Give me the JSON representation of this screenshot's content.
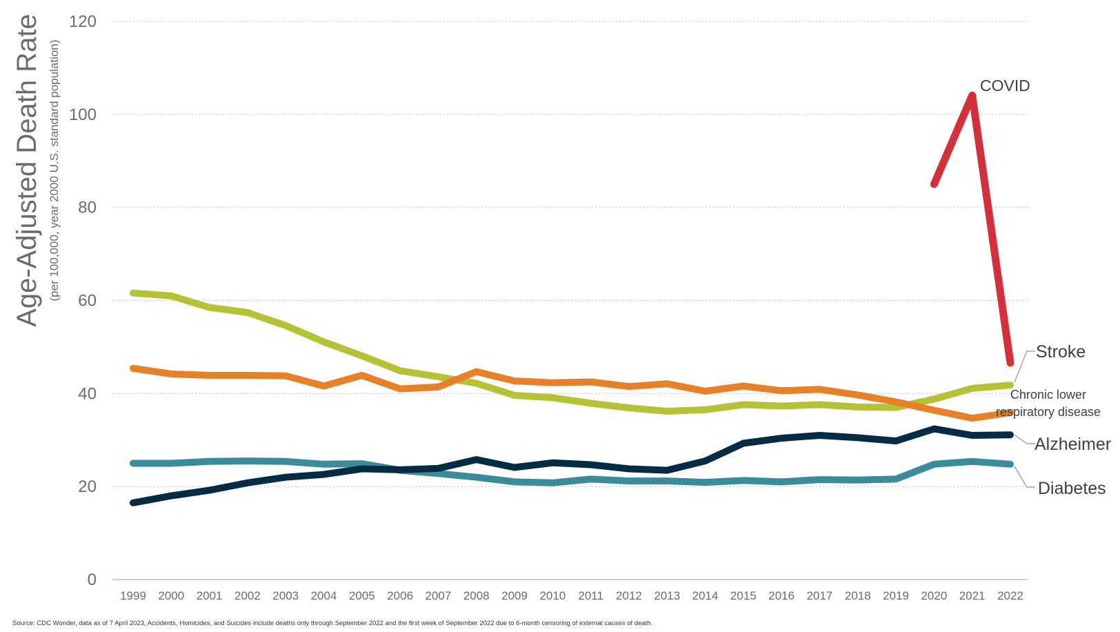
{
  "chart_data": {
    "type": "line",
    "title": "",
    "ylabel": "Age-Adjusted Death Rate",
    "ylabel_sub": "(per 100,000, year 2000 U.S. standard population)",
    "xlabel": "",
    "ylim": [
      0,
      120
    ],
    "yticks": [
      0,
      20,
      40,
      60,
      80,
      100,
      120
    ],
    "grid": "horizontal dotted",
    "x": [
      1999,
      2000,
      2001,
      2002,
      2003,
      2004,
      2005,
      2006,
      2007,
      2008,
      2009,
      2010,
      2011,
      2012,
      2013,
      2014,
      2015,
      2016,
      2017,
      2018,
      2019,
      2020,
      2021,
      2022
    ],
    "series": [
      {
        "name": "Stroke",
        "color": "#b5c235",
        "values": [
          61.6,
          61.0,
          58.5,
          57.4,
          54.6,
          51.1,
          48.1,
          44.9,
          43.6,
          42.2,
          39.6,
          39.1,
          37.9,
          36.9,
          36.2,
          36.5,
          37.6,
          37.3,
          37.6,
          37.1,
          37.0,
          38.8,
          41.1,
          41.8
        ]
      },
      {
        "name": "Chronic lower respiratory disease",
        "color": "#e6812a",
        "values": [
          45.4,
          44.2,
          43.9,
          43.9,
          43.8,
          41.6,
          43.9,
          41.0,
          41.4,
          44.7,
          42.7,
          42.3,
          42.5,
          41.5,
          42.1,
          40.5,
          41.6,
          40.6,
          40.9,
          39.7,
          38.2,
          36.4,
          34.7,
          35.9
        ]
      },
      {
        "name": "Alzheimer",
        "color": "#052c44",
        "values": [
          16.5,
          18.0,
          19.2,
          20.8,
          22.0,
          22.6,
          23.8,
          23.6,
          23.9,
          25.8,
          24.1,
          25.1,
          24.7,
          23.8,
          23.5,
          25.5,
          29.3,
          30.4,
          31.0,
          30.5,
          29.8,
          32.4,
          31.0,
          31.1
        ]
      },
      {
        "name": "Diabetes",
        "color": "#3a8c9b",
        "values": [
          25.0,
          25.0,
          25.4,
          25.5,
          25.4,
          24.8,
          24.9,
          23.5,
          22.8,
          22.0,
          21.0,
          20.8,
          21.6,
          21.2,
          21.2,
          20.9,
          21.3,
          21.0,
          21.5,
          21.4,
          21.6,
          24.8,
          25.4,
          24.8
        ]
      },
      {
        "name": "COVID",
        "color": "#d4303c",
        "values": [
          null,
          null,
          null,
          null,
          null,
          null,
          null,
          null,
          null,
          null,
          null,
          null,
          null,
          null,
          null,
          null,
          null,
          null,
          null,
          null,
          null,
          85.0,
          104.1,
          46.6
        ]
      }
    ],
    "labels": {
      "stroke": "Stroke",
      "clrd_line1": "Chronic lower",
      "clrd_line2": "respiratory disease",
      "alzheimer": "Alzheimer",
      "diabetes": "Diabetes",
      "covid": "COVID"
    },
    "source": "Source: CDC Wonder, data as of 7 April 2023, Accidents, Homicides, and Suicides include deaths only through September 2022 and the first week of September 2022 due to 6-month censoring of external causes of death."
  }
}
